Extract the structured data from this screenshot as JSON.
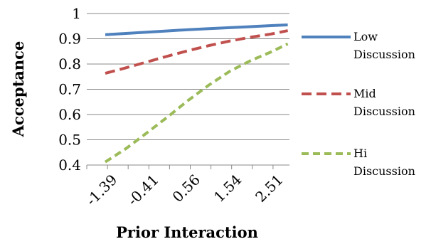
{
  "chart_data": {
    "type": "line",
    "title": "",
    "xlabel": "Prior Interaction",
    "ylabel": "Acceptance",
    "categories": [
      "-1.39",
      "-0.41",
      "0.56",
      "1.54",
      "2.51"
    ],
    "x": [
      -1.39,
      -0.41,
      0.56,
      1.54,
      2.51
    ],
    "ylim": [
      0.4,
      1.0
    ],
    "yticks": [
      "0.4",
      "0.5",
      "0.6",
      "0.7",
      "0.8",
      "0.9",
      "1"
    ],
    "grid": true,
    "legend_position": "right",
    "series": [
      {
        "name": "Low Discussion",
        "name_lines": [
          "Low",
          "Discussion"
        ],
        "style": "solid",
        "color": "#4f81bd",
        "x": [
          -1.39,
          -0.9,
          -0.41,
          0.075,
          0.56,
          1.05,
          1.54,
          2.025,
          2.51,
          2.9
        ],
        "values": [
          0.916,
          0.921,
          0.926,
          0.931,
          0.936,
          0.94,
          0.944,
          0.948,
          0.952,
          0.955
        ]
      },
      {
        "name": "Mid Discussion",
        "name_lines": [
          "Mid",
          "Discussion"
        ],
        "style": "dash",
        "color": "#c0504d",
        "x": [
          -1.39,
          -0.9,
          -0.41,
          0.075,
          0.56,
          1.05,
          1.54,
          2.025,
          2.51,
          2.9
        ],
        "values": [
          0.763,
          0.785,
          0.808,
          0.831,
          0.853,
          0.873,
          0.891,
          0.906,
          0.919,
          0.932
        ]
      },
      {
        "name": "Hi Discussion",
        "name_lines": [
          "Hi",
          "Discussion"
        ],
        "style": "shortdash",
        "color": "#9bbb59",
        "x": [
          -1.39,
          -0.9,
          -0.41,
          0.075,
          0.56,
          1.05,
          1.54,
          2.025,
          2.51,
          2.9
        ],
        "values": [
          0.412,
          0.465,
          0.527,
          0.59,
          0.656,
          0.717,
          0.771,
          0.813,
          0.848,
          0.88
        ]
      }
    ]
  }
}
